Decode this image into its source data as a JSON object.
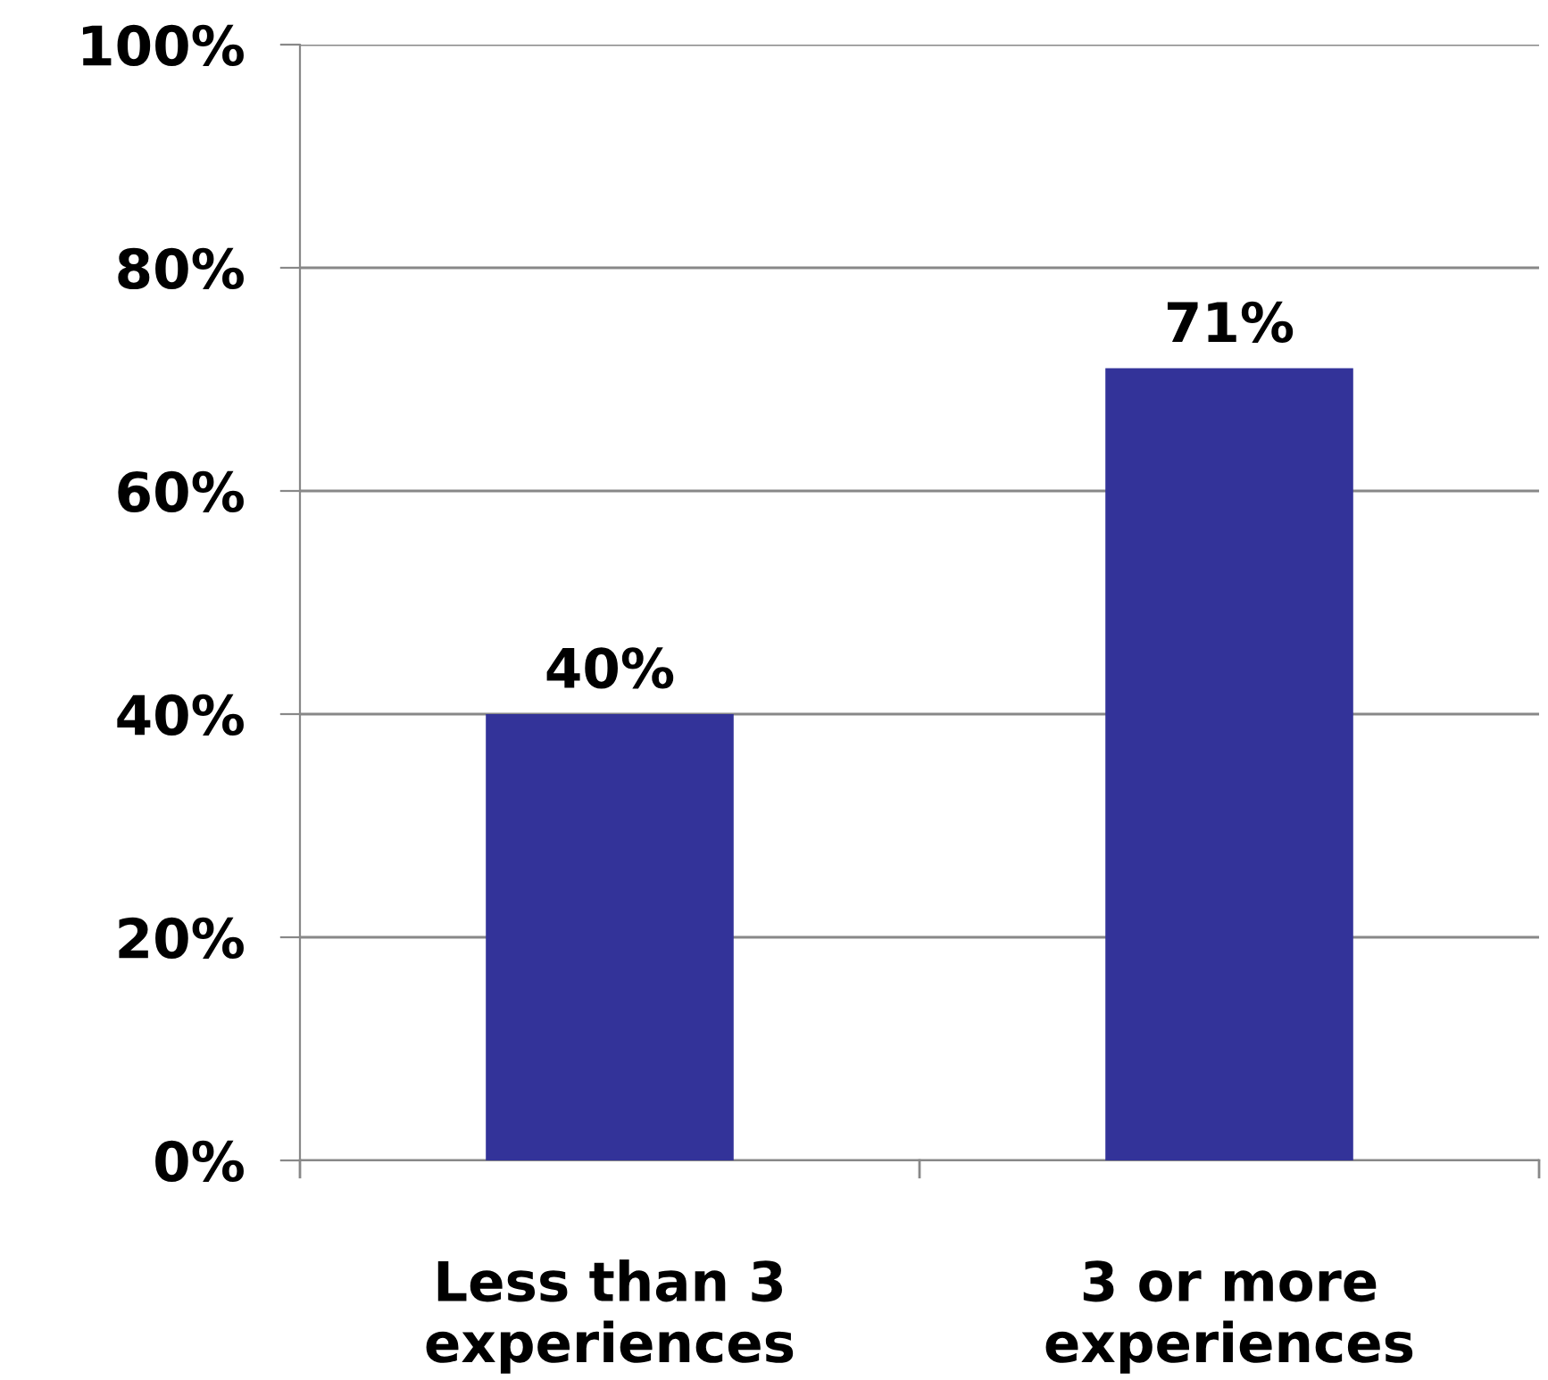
{
  "chart_data": {
    "type": "bar",
    "categories": [
      "Less than 3\nexperiences",
      "3 or more\nexperiences"
    ],
    "values": [
      40,
      71
    ],
    "value_labels": [
      "40%",
      "71%"
    ],
    "color": "#333399",
    "ylim": [
      0,
      100
    ],
    "yticks": [
      {
        "value": 0,
        "label": "0%"
      },
      {
        "value": 20,
        "label": "20%"
      },
      {
        "value": 40,
        "label": "40%"
      },
      {
        "value": 60,
        "label": "60%"
      },
      {
        "value": 80,
        "label": "80%"
      },
      {
        "value": 100,
        "label": "100%"
      }
    ],
    "grid": "y"
  }
}
